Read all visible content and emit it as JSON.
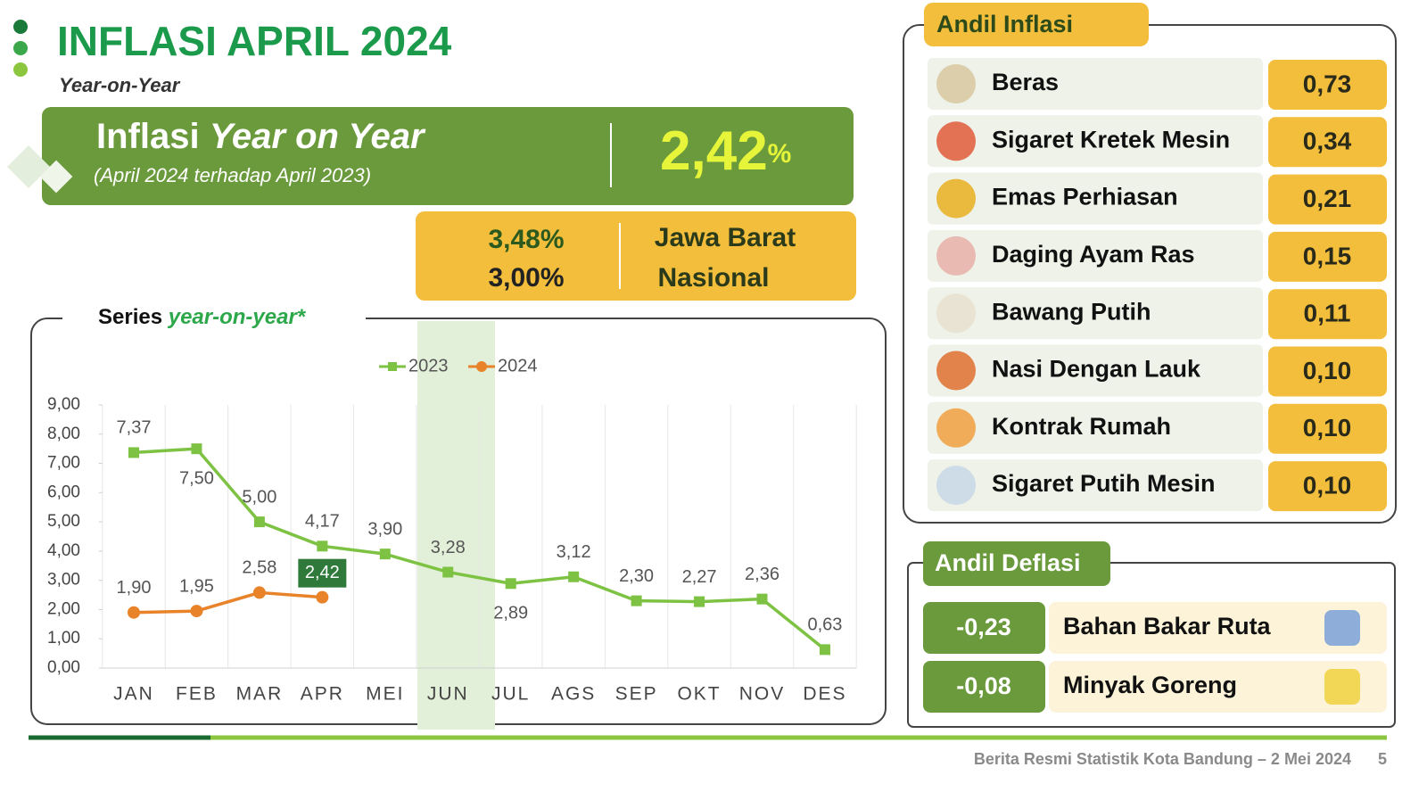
{
  "header": {
    "title": "INFLASI APRIL 2024",
    "subtitle": "Year-on-Year"
  },
  "headline": {
    "title_a": "Inflasi",
    "title_b": "Year on Year",
    "period": "(April 2024 terhadap April 2023)",
    "value": "2,42",
    "unit": "%"
  },
  "regional": [
    {
      "value": "3,48%",
      "label": "Jawa Barat"
    },
    {
      "value": "3,00%",
      "label": "Nasional"
    }
  ],
  "chart_data": {
    "type": "line",
    "title_a": "Series",
    "title_b": "year-on-year*",
    "categories": [
      "JAN",
      "FEB",
      "MAR",
      "APR",
      "MEI",
      "JUN",
      "JUL",
      "AGS",
      "SEP",
      "OKT",
      "NOV",
      "DES"
    ],
    "series": [
      {
        "name": "2023",
        "color": "#7dc242",
        "marker": "square",
        "values": [
          7.37,
          7.5,
          5.0,
          4.17,
          3.9,
          3.28,
          2.89,
          3.12,
          2.3,
          2.27,
          2.36,
          0.63
        ],
        "value_labels": [
          "7,37",
          "7,50",
          "5,00",
          "4,17",
          "3,90",
          "3,28",
          "2,89",
          "3,12",
          "2,30",
          "2,27",
          "2,36",
          "0,63"
        ]
      },
      {
        "name": "2024",
        "color": "#e8832a",
        "marker": "circle",
        "values": [
          1.9,
          1.95,
          2.58,
          2.42,
          null,
          null,
          null,
          null,
          null,
          null,
          null,
          null
        ],
        "value_labels": [
          "1,90",
          "1,95",
          "2,58",
          "2,42",
          null,
          null,
          null,
          null,
          null,
          null,
          null,
          null
        ]
      }
    ],
    "ylim": [
      0,
      9
    ],
    "yticks": [
      {
        "value": 0,
        "label": "0,00"
      },
      {
        "value": 1,
        "label": "1,00"
      },
      {
        "value": 2,
        "label": "2,00"
      },
      {
        "value": 3,
        "label": "3,00"
      },
      {
        "value": 4,
        "label": "4,00"
      },
      {
        "value": 5,
        "label": "5,00"
      },
      {
        "value": 6,
        "label": "6,00"
      },
      {
        "value": 7,
        "label": "7,00"
      },
      {
        "value": 8,
        "label": "8,00"
      },
      {
        "value": 9,
        "label": "9,00"
      }
    ],
    "legend": "top"
  },
  "andil_inflasi": {
    "title": "Andil Inflasi",
    "items": [
      {
        "label": "Beras",
        "value": "0,73"
      },
      {
        "label": "Sigaret Kretek Mesin",
        "value": "0,34"
      },
      {
        "label": "Emas Perhiasan",
        "value": "0,21"
      },
      {
        "label": "Daging Ayam Ras",
        "value": "0,15"
      },
      {
        "label": "Bawang Putih",
        "value": "0,11"
      },
      {
        "label": "Nasi Dengan Lauk",
        "value": "0,10"
      },
      {
        "label": "Kontrak Rumah",
        "value": "0,10"
      },
      {
        "label": "Sigaret Putih Mesin",
        "value": "0,10"
      }
    ]
  },
  "andil_deflasi": {
    "title": "Andil Deflasi",
    "items": [
      {
        "label": "Bahan Bakar Ruta",
        "value": "-0,23"
      },
      {
        "label": "Minyak Goreng",
        "value": "-0,08"
      }
    ]
  },
  "footer": {
    "source": "Berita Resmi Statistik Kota Bandung –  2 Mei 2024",
    "page": "5"
  }
}
